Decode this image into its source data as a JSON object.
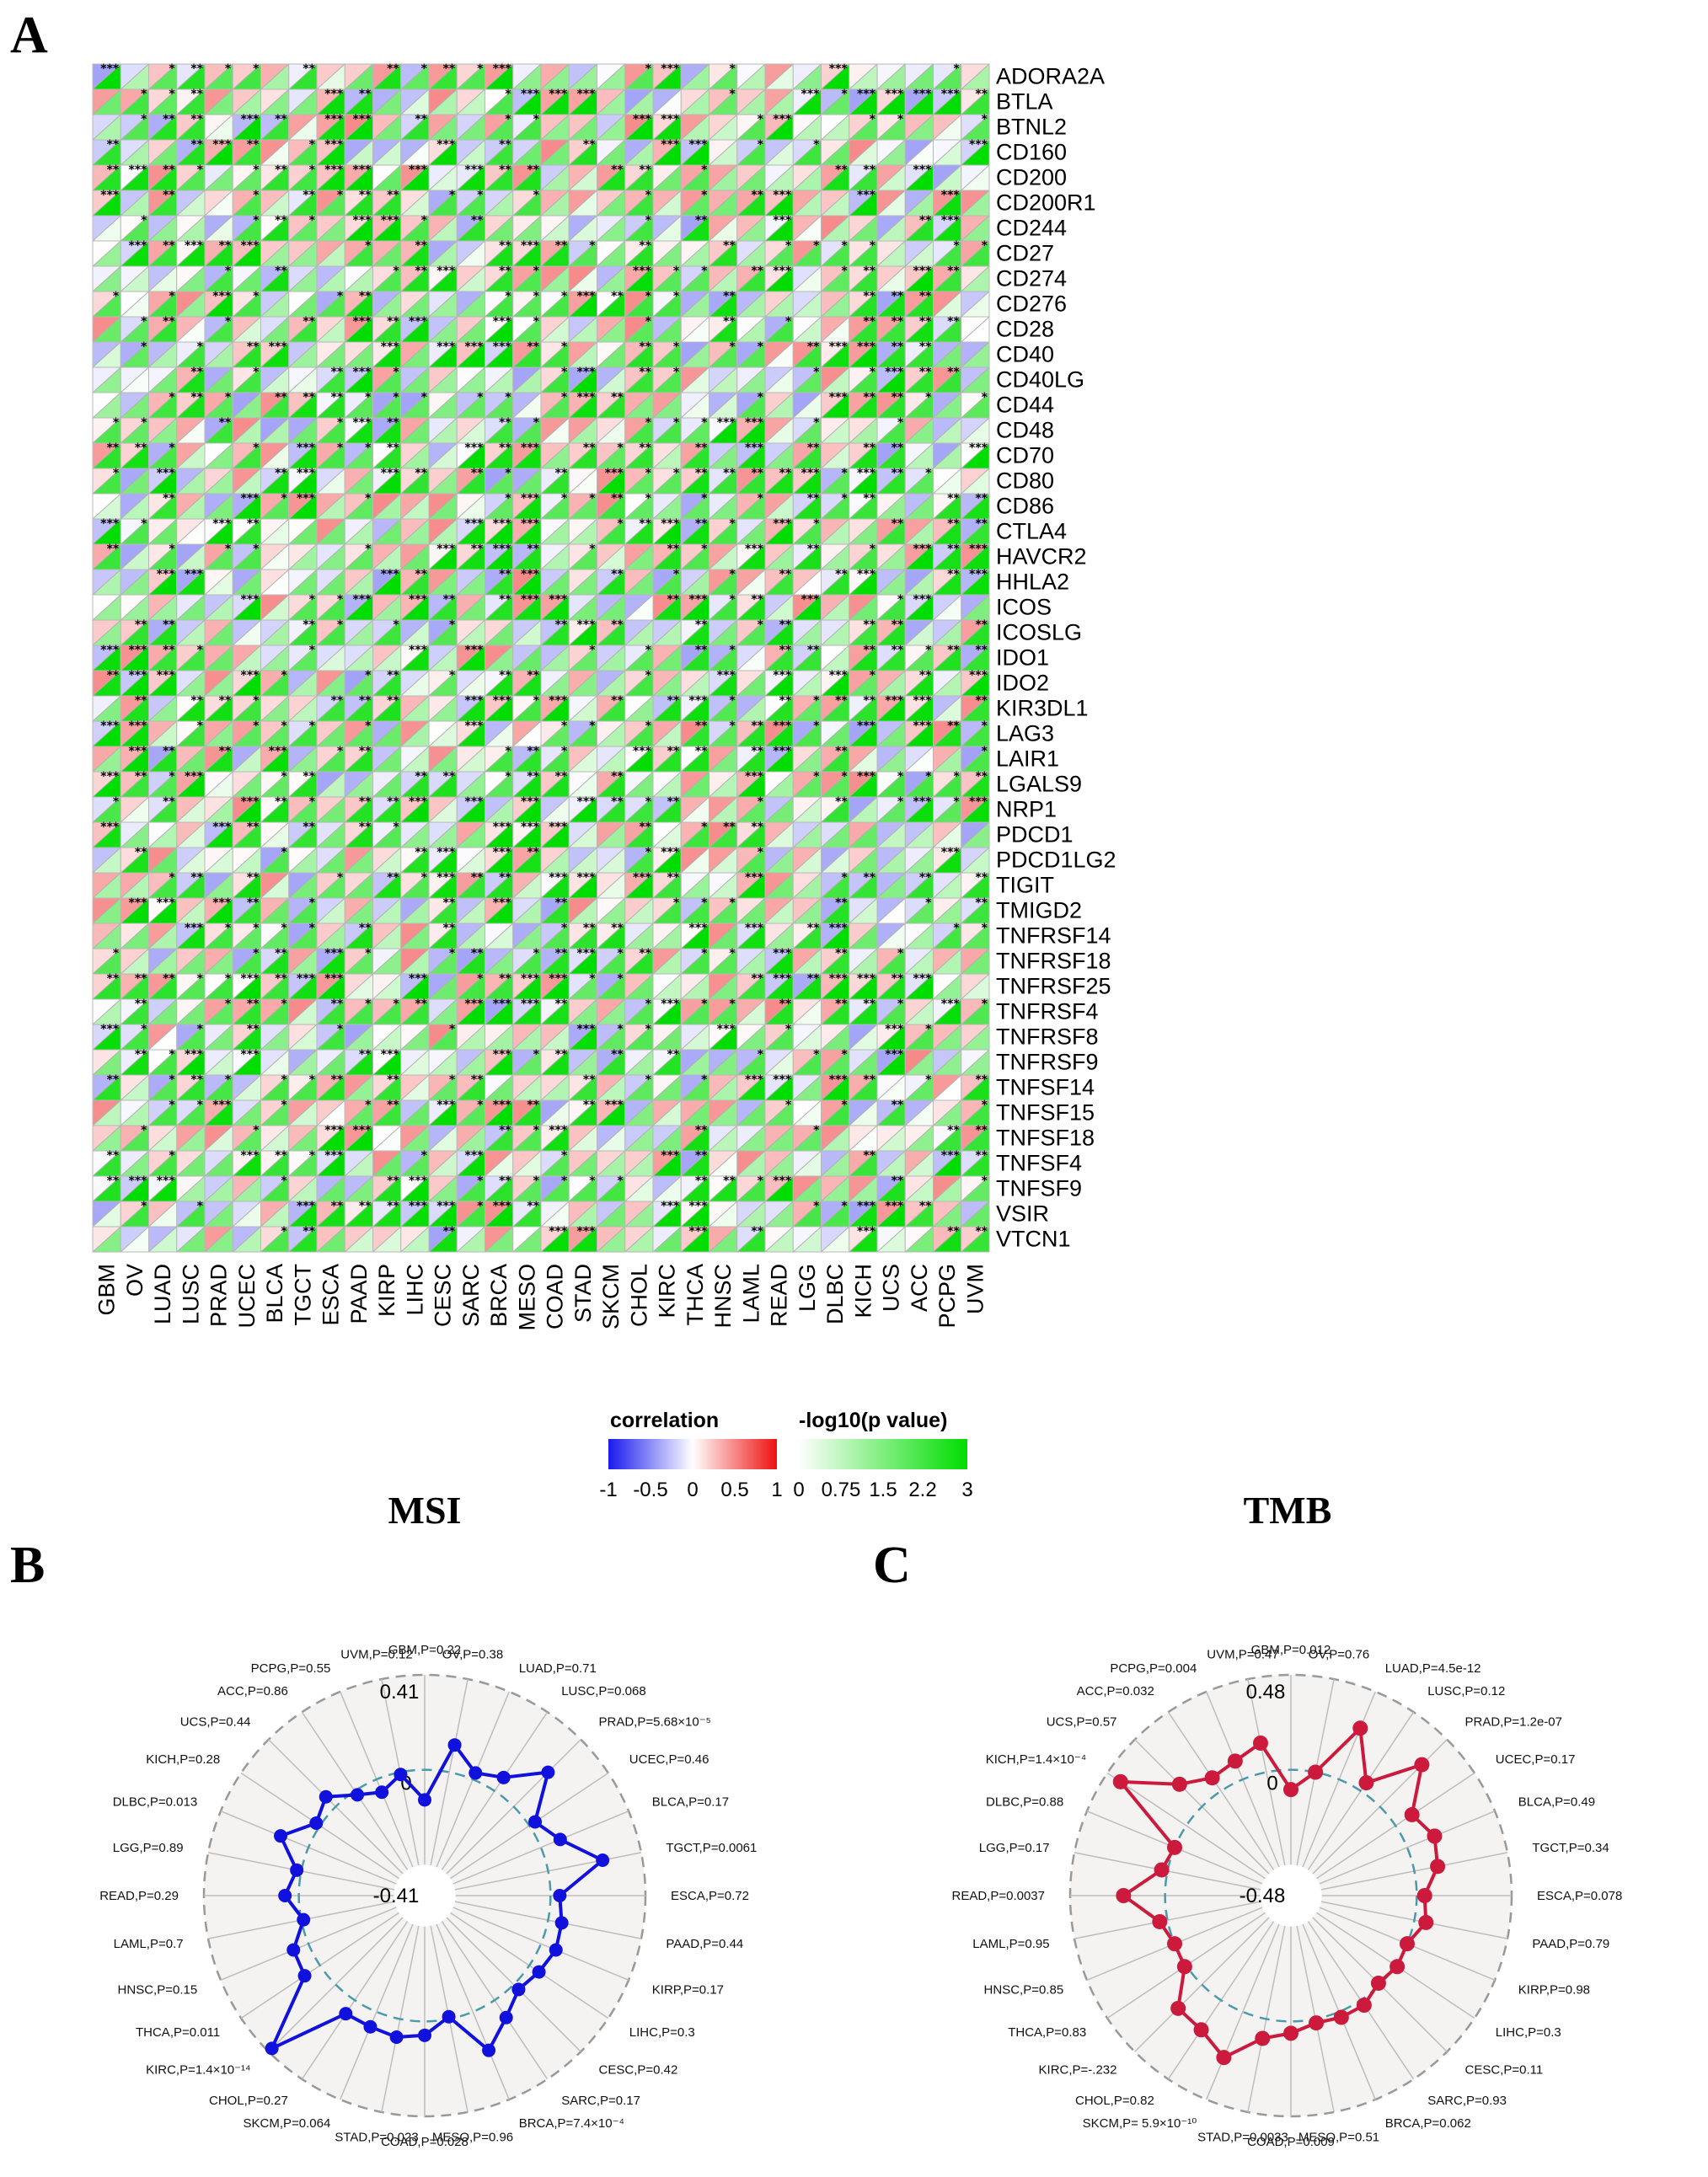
{
  "panels": {
    "A": {
      "letter": "A"
    },
    "B": {
      "letter": "B",
      "title": "MSI"
    },
    "C": {
      "letter": "C",
      "title": "TMB"
    }
  },
  "colors": {
    "corr_negative": "#1a1aee",
    "corr_zero": "#ffffff",
    "corr_positive": "#ee1111",
    "pval_low": "#ffffff",
    "pval_high": "#00dd00",
    "msi_line": "#1111dd",
    "tmb_line": "#cc1a3c",
    "ring_dash": "#4a9aaa",
    "outer_dash": "#999999"
  },
  "chart_data": [
    {
      "type": "heatmap",
      "description_cells": "upper-left triangle encodes correlation, lower-right triangle encodes -log10(p value)",
      "columns": [
        "GBM",
        "OV",
        "LUAD",
        "LUSC",
        "PRAD",
        "UCEC",
        "BLCA",
        "TGCT",
        "ESCA",
        "PAAD",
        "KIRP",
        "LIHC",
        "CESC",
        "SARC",
        "BRCA",
        "MESO",
        "COAD",
        "STAD",
        "SKCM",
        "CHOL",
        "KIRC",
        "THCA",
        "HNSC",
        "LAML",
        "READ",
        "LGG",
        "DLBC",
        "KICH",
        "UCS",
        "ACC",
        "PCPG",
        "UVM"
      ],
      "rows": [
        "ADORA2A",
        "BTLA",
        "BTNL2",
        "CD160",
        "CD200",
        "CD200R1",
        "CD244",
        "CD27",
        "CD274",
        "CD276",
        "CD28",
        "CD40",
        "CD40LG",
        "CD44",
        "CD48",
        "CD70",
        "CD80",
        "CD86",
        "CTLA4",
        "HAVCR2",
        "HHLA2",
        "ICOS",
        "ICOSLG",
        "IDO1",
        "IDO2",
        "KIR3DL1",
        "LAG3",
        "LAIR1",
        "LGALS9",
        "NRP1",
        "PDCD1",
        "PDCD1LG2",
        "TIGIT",
        "TMIGD2",
        "TNFRSF14",
        "TNFRSF18",
        "TNFRSF25",
        "TNFRSF4",
        "TNFRSF8",
        "TNFRSF9",
        "TNFSF14",
        "TNFSF15",
        "TNFSF18",
        "TNFSF4",
        "TNFSF9",
        "VSIR",
        "VTCN1"
      ],
      "legend": {
        "correlation": {
          "title": "correlation",
          "ticks": [
            "-1",
            "-0.5",
            "0",
            "0.5",
            "1"
          ],
          "range": [
            -1,
            1
          ]
        },
        "pvalue": {
          "title": "-log10(p value)",
          "ticks": [
            "0",
            "0.75",
            "1.5",
            "2.2",
            "3"
          ],
          "range": [
            0,
            3
          ]
        }
      }
    },
    {
      "type": "radar",
      "title": "MSI",
      "range": [
        -0.41,
        0.41
      ],
      "ring_labels": {
        "outer": "0.41",
        "zero": "0",
        "inner": "-0.41"
      },
      "categories": [
        "GBM",
        "OV",
        "LUAD",
        "LUSC",
        "PRAD",
        "UCEC",
        "BLCA",
        "TGCT",
        "ESCA",
        "PAAD",
        "KIRP",
        "LIHC",
        "CESC",
        "SARC",
        "BRCA",
        "MESO",
        "COAD",
        "STAD",
        "SKCM",
        "CHOL",
        "KIRC",
        "THCA",
        "HNSC",
        "LAML",
        "READ",
        "LGG",
        "DLBC",
        "KICH",
        "UCS",
        "ACC",
        "PCPG",
        "UVM"
      ],
      "labels": [
        "GBM,P=0.22",
        "OV,P=0.38",
        "LUAD,P=0.71",
        "LUSC,P=0.068",
        "PRAD,P=5.68×10⁻⁵",
        "UCEC,P=0.46",
        "BLCA,P=0.17",
        "TGCT,P=0.0061",
        "ESCA,P=0.72",
        "PAAD,P=0.44",
        "KIRP,P=0.17",
        "LIHC,P=0.3",
        "CESC,P=0.42",
        "SARC,P=0.17",
        "BRCA,P=7.4×10⁻⁴",
        "MESO,P=0.96",
        "COAD,P=0.028",
        "STAD,P=0.023",
        "SKCM,P=0.064",
        "CHOL,P=0.27",
        "KIRC,P=1.4×10⁻¹⁴",
        "THCA,P=0.011",
        "HNSC,P=0.15",
        "LAML,P=0.7",
        "READ,P=0.29",
        "LGG,P=0.89",
        "DLBC,P=0.013",
        "KICH,P=0.28",
        "UCS,P=0.44",
        "ACC,P=0.86",
        "PCPG,P=0.55",
        "UVM,P=0.12"
      ],
      "values": [
        -0.13,
        0.12,
        0.03,
        0.07,
        0.21,
        0.03,
        0.09,
        0.24,
        0.04,
        0.06,
        0.07,
        0.05,
        0.03,
        0.09,
        0.18,
        -0.01,
        0.06,
        0.08,
        0.07,
        0.07,
        0.39,
        0.08,
        0.07,
        -0.01,
        0.06,
        0.02,
        0.13,
        0.02,
        0.06,
        -0.02,
        -0.06,
        -0.01
      ]
    },
    {
      "type": "radar",
      "title": "TMB",
      "range": [
        -0.48,
        0.48
      ],
      "ring_labels": {
        "outer": "0.48",
        "zero": "0",
        "inner": "-0.48"
      },
      "categories": [
        "GBM",
        "OV",
        "LUAD",
        "LUSC",
        "PRAD",
        "UCEC",
        "BLCA",
        "TGCT",
        "ESCA",
        "PAAD",
        "KIRP",
        "LIHC",
        "CESC",
        "SARC",
        "BRCA",
        "MESO",
        "COAD",
        "STAD",
        "SKCM",
        "CHOL",
        "KIRC",
        "THCA",
        "HNSC",
        "LAML",
        "READ",
        "LGG",
        "DLBC",
        "KICH",
        "UCS",
        "ACC",
        "PCPG",
        "UVM"
      ],
      "labels": [
        "GBM,P=0.012",
        "OV,P=0.76",
        "LUAD,P=4.5e-12",
        "LUSC,P=0.12",
        "PRAD,P=1.2e-07",
        "UCEC,P=0.17",
        "BLCA,P=0.49",
        "TGCT,P=0.34",
        "ESCA,P=0.078",
        "PAAD,P=0.79",
        "KIRP,P=0.98",
        "LIHC,P=0.3",
        "CESC,P=0.11",
        "SARC,P=0.93",
        "BRCA,P=0.062",
        "MESO,P=0.51",
        "COAD,P=0.009",
        "STAD,P=0.0033",
        "SKCM,P=  5.9×10⁻¹⁰",
        "CHOL,P=0.82",
        "KIRC,P=-.232",
        "THCA,P=0.83",
        "HNSC,P=0.85",
        "LAML,P=0.95",
        "READ,P=0.0037",
        "LGG,P=0.17",
        "DLBC,P=0.88",
        "KICH,P=1.4×10⁻⁴",
        "UCS,P=0.57",
        "ACC,P=0.032",
        "PCPG,P=0.004",
        "UVM,P=0.47"
      ],
      "values": [
        -0.1,
        0.0,
        0.28,
        0.05,
        0.3,
        0.1,
        0.15,
        0.12,
        0.04,
        0.06,
        0.0,
        0.01,
        -0.01,
        0.03,
        0.03,
        0.02,
        0.06,
        0.1,
        0.25,
        0.18,
        0.17,
        0.01,
        0.0,
        0.04,
        0.21,
        0.03,
        0.0,
        0.4,
        0.16,
        0.08,
        0.1,
        0.15
      ]
    }
  ]
}
